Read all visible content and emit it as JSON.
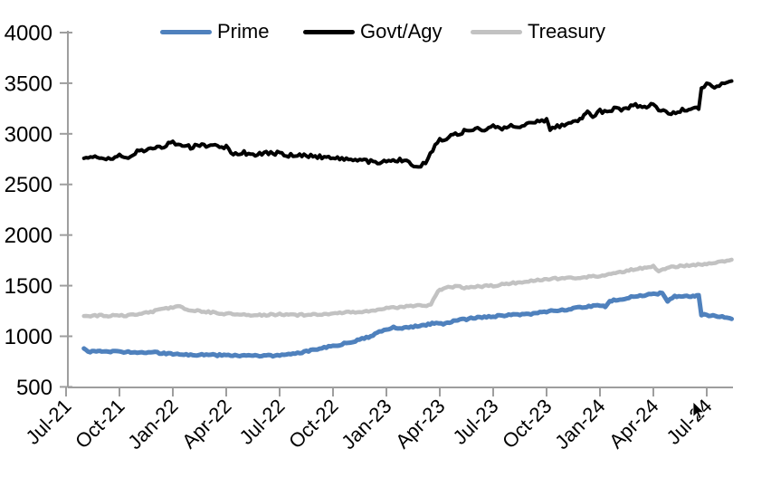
{
  "chart": {
    "legend": {
      "items": [
        {
          "label": "Prime",
          "color": "#4f81bd"
        },
        {
          "label": "Govt/Agy",
          "color": "#000000"
        },
        {
          "label": "Treasury",
          "color": "#c2c2c2"
        }
      ]
    },
    "axis_color": "#9e9e9e"
  },
  "chart_data": {
    "type": "line",
    "title": "",
    "xlabel": "",
    "ylabel": "",
    "ylim": [
      500,
      4000
    ],
    "grid": false,
    "legend_position": "top",
    "y_ticks": [
      4000,
      3500,
      3000,
      2500,
      2000,
      1500,
      1000,
      500
    ],
    "x_tick_labels": [
      "Jul-21",
      "Oct-21",
      "Jan-22",
      "Apr-22",
      "Jul-22",
      "Oct-22",
      "Jan-23",
      "Apr-23",
      "Jul-23",
      "Oct-23",
      "Jan-24",
      "Apr-24",
      "Jul-24"
    ],
    "x_unit_note": "series points given as [months_after_Jul-21, value]",
    "series": [
      {
        "name": "Prime",
        "color": "#4f81bd",
        "width": 5,
        "points": [
          [
            1,
            880
          ],
          [
            1.35,
            843
          ],
          [
            1.7,
            856
          ],
          [
            2,
            850
          ],
          [
            3,
            848
          ],
          [
            4,
            845
          ],
          [
            5,
            838
          ],
          [
            6,
            826
          ],
          [
            7,
            818
          ],
          [
            8,
            815
          ],
          [
            9,
            812
          ],
          [
            10,
            808
          ],
          [
            11,
            806
          ],
          [
            12,
            812
          ],
          [
            13,
            830
          ],
          [
            14,
            868
          ],
          [
            15,
            905
          ],
          [
            16,
            940
          ],
          [
            17,
            992
          ],
          [
            17.6,
            1042
          ],
          [
            18,
            1065
          ],
          [
            18.4,
            1085
          ],
          [
            19,
            1082
          ],
          [
            20,
            1106
          ],
          [
            20.8,
            1135
          ],
          [
            21.2,
            1122
          ],
          [
            22,
            1158
          ],
          [
            23,
            1182
          ],
          [
            24,
            1196
          ],
          [
            25,
            1208
          ],
          [
            26,
            1220
          ],
          [
            27,
            1242
          ],
          [
            28,
            1262
          ],
          [
            29,
            1286
          ],
          [
            30,
            1310
          ],
          [
            30.3,
            1298
          ],
          [
            30.55,
            1348
          ],
          [
            31,
            1362
          ],
          [
            32,
            1396
          ],
          [
            33,
            1416
          ],
          [
            33.5,
            1428
          ],
          [
            33.8,
            1352
          ],
          [
            34.2,
            1392
          ],
          [
            35,
            1396
          ],
          [
            35.55,
            1402
          ],
          [
            35.7,
            1215
          ],
          [
            36,
            1207
          ],
          [
            36.6,
            1198
          ],
          [
            37,
            1186
          ],
          [
            37.4,
            1172
          ]
        ]
      },
      {
        "name": "Govt/Agy",
        "color": "#000000",
        "width": 4,
        "points": [
          [
            1,
            2758
          ],
          [
            1.5,
            2772
          ],
          [
            2,
            2766
          ],
          [
            2.5,
            2744
          ],
          [
            3,
            2790
          ],
          [
            3.5,
            2772
          ],
          [
            4,
            2822
          ],
          [
            4.5,
            2842
          ],
          [
            5,
            2860
          ],
          [
            5.5,
            2882
          ],
          [
            6,
            2932
          ],
          [
            6.3,
            2888
          ],
          [
            7,
            2868
          ],
          [
            7.5,
            2886
          ],
          [
            8,
            2878
          ],
          [
            8.5,
            2890
          ],
          [
            9,
            2866
          ],
          [
            9.4,
            2790
          ],
          [
            10,
            2814
          ],
          [
            10.5,
            2796
          ],
          [
            11,
            2802
          ],
          [
            11.5,
            2814
          ],
          [
            12,
            2806
          ],
          [
            12.5,
            2790
          ],
          [
            13,
            2786
          ],
          [
            14,
            2778
          ],
          [
            15,
            2762
          ],
          [
            15.5,
            2750
          ],
          [
            16,
            2742
          ],
          [
            16.5,
            2750
          ],
          [
            17,
            2728
          ],
          [
            17.5,
            2722
          ],
          [
            18,
            2728
          ],
          [
            18.5,
            2738
          ],
          [
            19,
            2744
          ],
          [
            19.4,
            2700
          ],
          [
            19.8,
            2665
          ],
          [
            20.2,
            2722
          ],
          [
            20.6,
            2845
          ],
          [
            21,
            2935
          ],
          [
            21.5,
            2962
          ],
          [
            22,
            3002
          ],
          [
            22.5,
            3032
          ],
          [
            23,
            3052
          ],
          [
            23.5,
            3042
          ],
          [
            24,
            3068
          ],
          [
            24.5,
            3056
          ],
          [
            25,
            3080
          ],
          [
            25.5,
            3064
          ],
          [
            26,
            3108
          ],
          [
            26.6,
            3128
          ],
          [
            27,
            3132
          ],
          [
            27.2,
            3052
          ],
          [
            27.6,
            3070
          ],
          [
            28,
            3084
          ],
          [
            28.5,
            3130
          ],
          [
            29,
            3152
          ],
          [
            29.3,
            3218
          ],
          [
            29.6,
            3172
          ],
          [
            30,
            3228
          ],
          [
            30.4,
            3202
          ],
          [
            30.8,
            3256
          ],
          [
            31.2,
            3236
          ],
          [
            31.6,
            3262
          ],
          [
            32,
            3280
          ],
          [
            32.5,
            3268
          ],
          [
            33,
            3292
          ],
          [
            33.3,
            3232
          ],
          [
            33.7,
            3222
          ],
          [
            34,
            3208
          ],
          [
            34.5,
            3228
          ],
          [
            35,
            3242
          ],
          [
            35.55,
            3256
          ],
          [
            35.7,
            3452
          ],
          [
            36,
            3492
          ],
          [
            36.3,
            3462
          ],
          [
            36.7,
            3480
          ],
          [
            37,
            3500
          ],
          [
            37.4,
            3522
          ]
        ]
      },
      {
        "name": "Treasury",
        "color": "#c2c2c2",
        "width": 4.5,
        "points": [
          [
            1,
            1200
          ],
          [
            2,
            1205
          ],
          [
            3,
            1200
          ],
          [
            4,
            1216
          ],
          [
            5,
            1250
          ],
          [
            6,
            1288
          ],
          [
            6.3,
            1300
          ],
          [
            7,
            1256
          ],
          [
            8,
            1240
          ],
          [
            9,
            1222
          ],
          [
            10,
            1212
          ],
          [
            11,
            1210
          ],
          [
            12,
            1216
          ],
          [
            13,
            1210
          ],
          [
            14,
            1216
          ],
          [
            15,
            1226
          ],
          [
            16,
            1236
          ],
          [
            17,
            1250
          ],
          [
            18,
            1276
          ],
          [
            19,
            1292
          ],
          [
            20,
            1302
          ],
          [
            20.5,
            1312
          ],
          [
            20.9,
            1448
          ],
          [
            21.2,
            1472
          ],
          [
            21.6,
            1486
          ],
          [
            22,
            1490
          ],
          [
            22.5,
            1478
          ],
          [
            23,
            1490
          ],
          [
            24,
            1500
          ],
          [
            25,
            1522
          ],
          [
            26,
            1546
          ],
          [
            27,
            1566
          ],
          [
            28,
            1572
          ],
          [
            29,
            1582
          ],
          [
            30,
            1596
          ],
          [
            31,
            1632
          ],
          [
            32,
            1662
          ],
          [
            33,
            1688
          ],
          [
            33.3,
            1642
          ],
          [
            34,
            1684
          ],
          [
            35,
            1702
          ],
          [
            36,
            1716
          ],
          [
            37,
            1742
          ],
          [
            37.4,
            1756
          ]
        ]
      }
    ]
  }
}
